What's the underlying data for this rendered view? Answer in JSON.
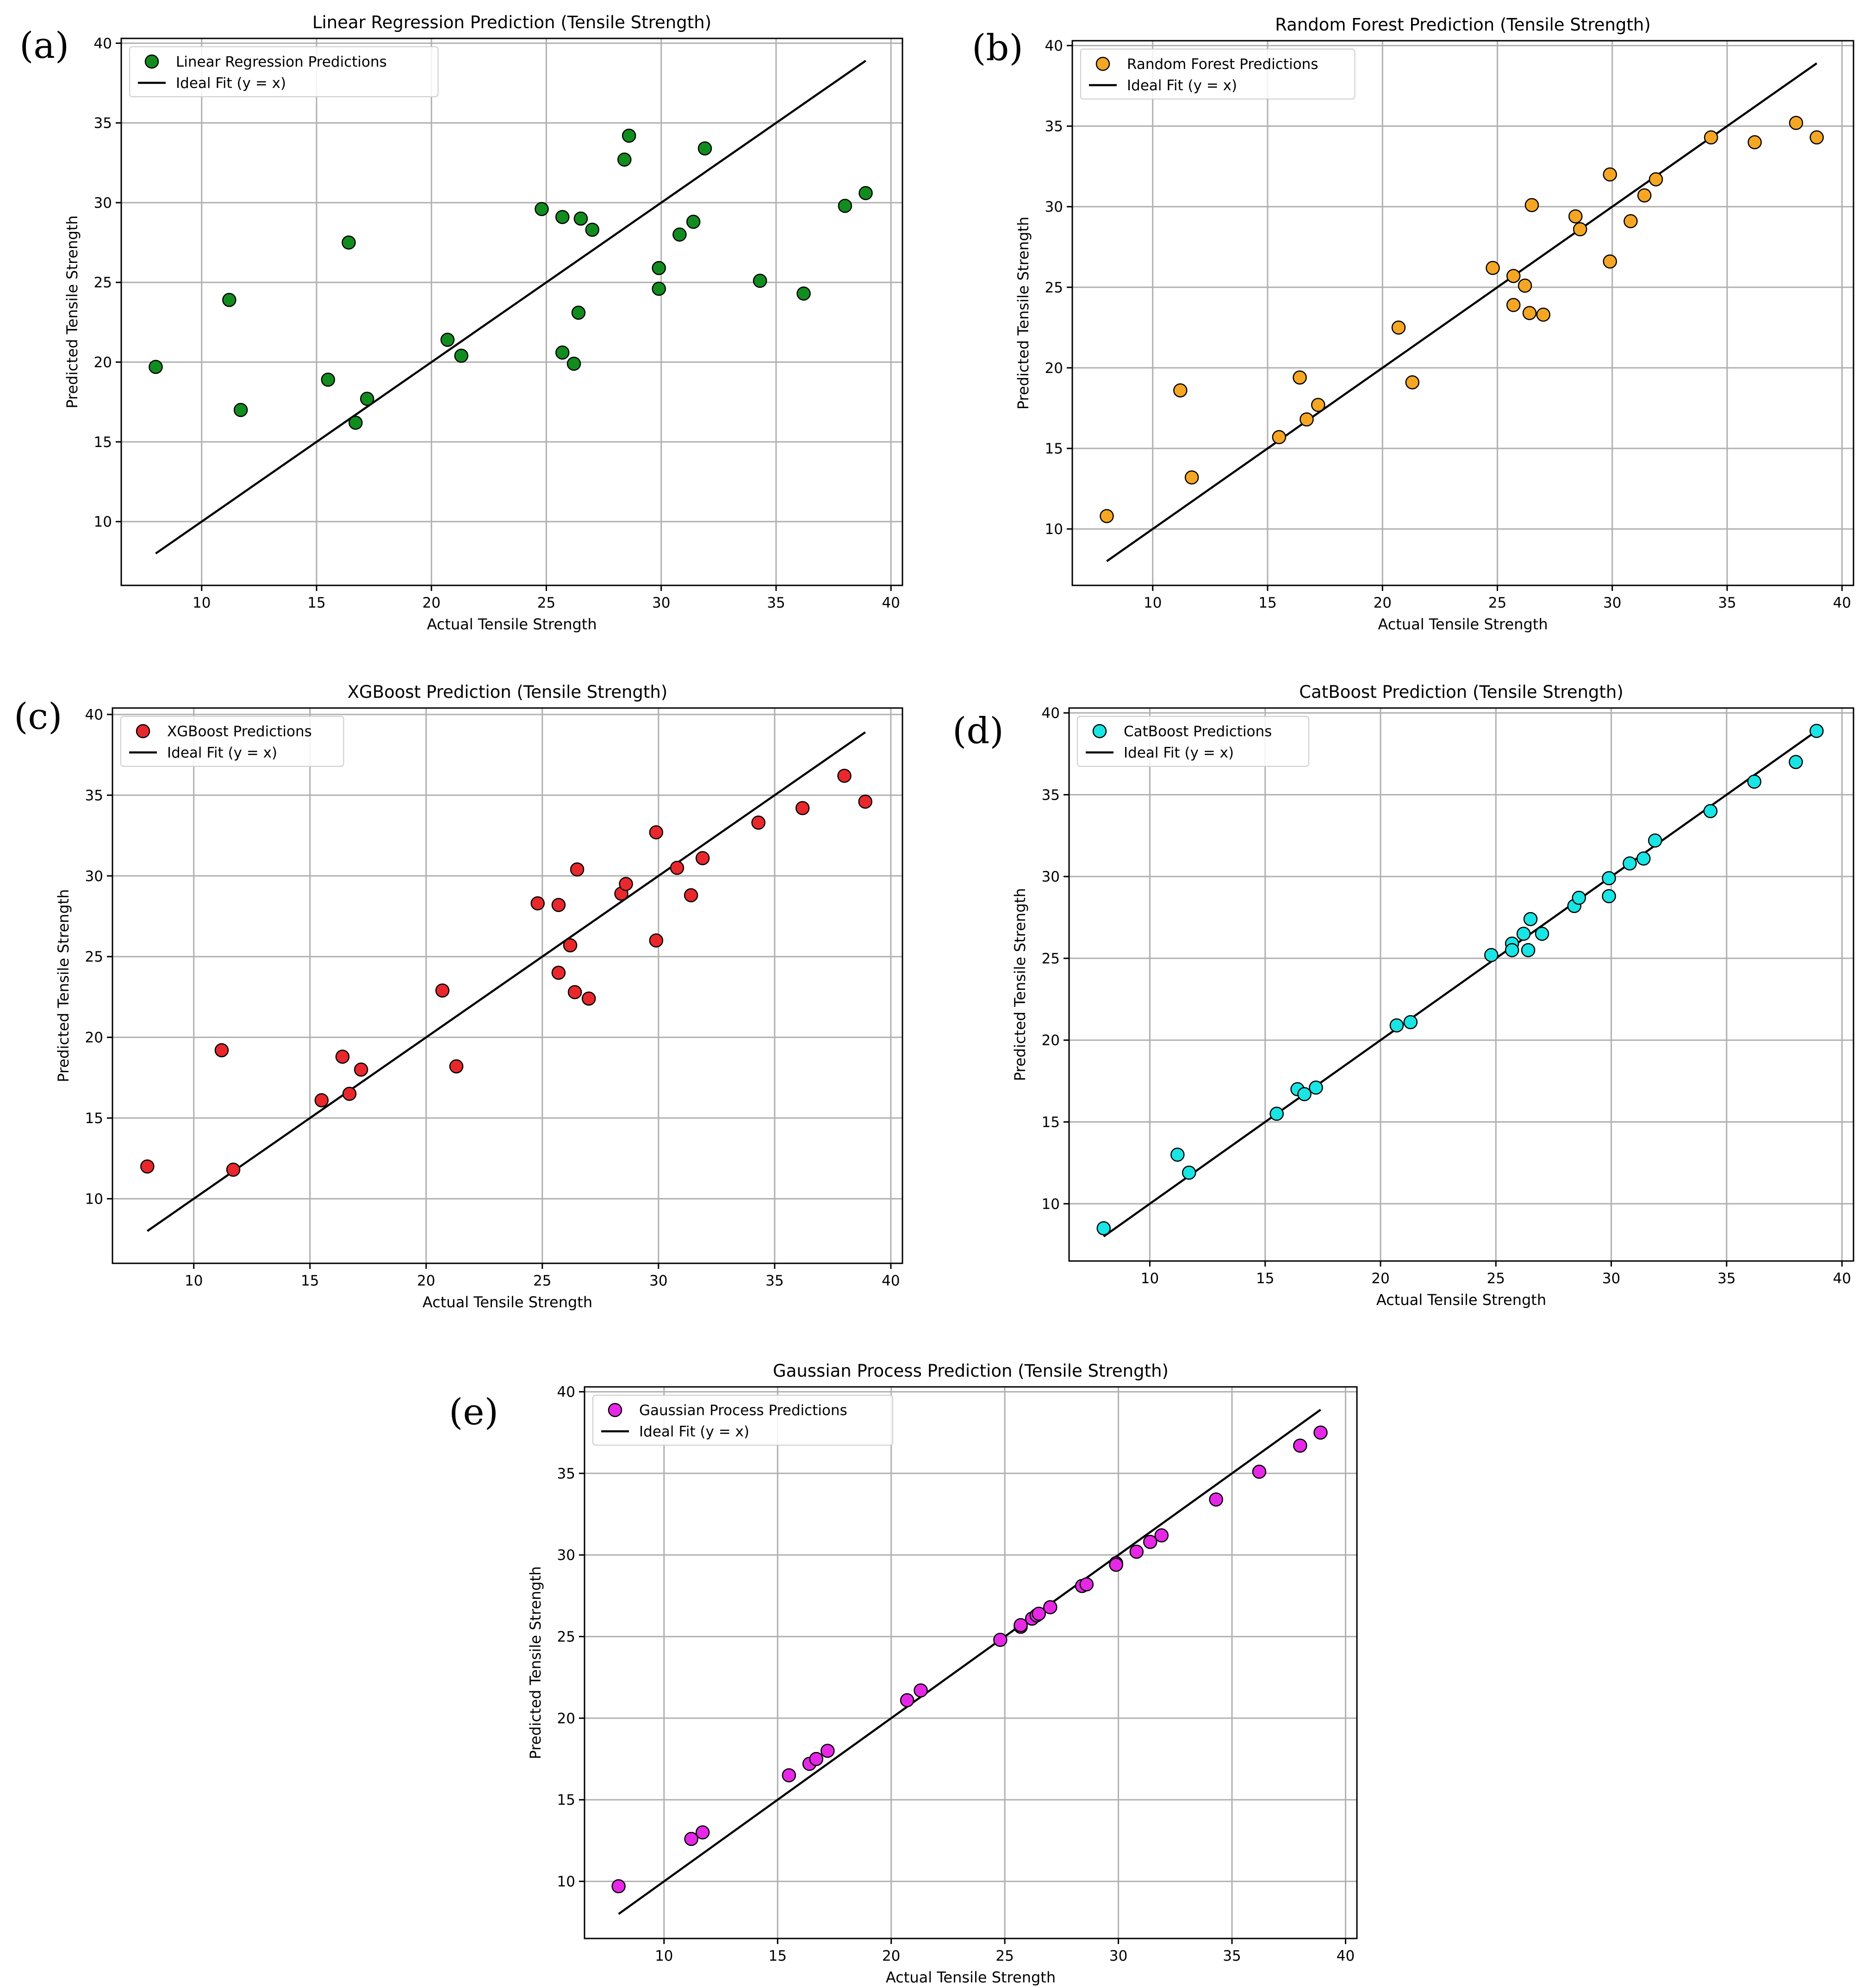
{
  "chart_data": [
    {
      "type": "scatter",
      "panel": "(a)",
      "title": "Linear Regression Prediction (Tensile Strength)",
      "xlabel": "Actual Tensile Strength",
      "ylabel": "Predicted Tensile Strength",
      "xlim": [
        6.5,
        40.5
      ],
      "ylim": [
        6,
        40.3
      ],
      "xticks": [
        10,
        15,
        20,
        25,
        30,
        35,
        40
      ],
      "yticks": [
        10,
        15,
        20,
        25,
        30,
        35,
        40
      ],
      "grid": true,
      "legend_position": "top-left",
      "color": "#118c1e",
      "legend": [
        "Linear Regression Predictions",
        "Ideal Fit (y = x)"
      ],
      "ideal_fit": [
        8,
        38.9
      ],
      "points": [
        [
          8.0,
          19.7
        ],
        [
          11.2,
          23.9
        ],
        [
          11.7,
          17.0
        ],
        [
          15.5,
          18.9
        ],
        [
          16.4,
          27.5
        ],
        [
          16.7,
          16.2
        ],
        [
          17.2,
          17.7
        ],
        [
          20.7,
          21.4
        ],
        [
          21.3,
          20.4
        ],
        [
          24.8,
          29.6
        ],
        [
          25.7,
          20.6
        ],
        [
          25.7,
          29.1
        ],
        [
          26.2,
          19.9
        ],
        [
          26.4,
          23.1
        ],
        [
          26.5,
          29.0
        ],
        [
          27.0,
          28.3
        ],
        [
          28.4,
          32.7
        ],
        [
          28.6,
          34.2
        ],
        [
          29.9,
          25.9
        ],
        [
          29.9,
          24.6
        ],
        [
          30.8,
          28.0
        ],
        [
          31.4,
          28.8
        ],
        [
          31.9,
          33.4
        ],
        [
          34.3,
          25.1
        ],
        [
          36.2,
          24.3
        ],
        [
          38.0,
          29.8
        ],
        [
          38.9,
          30.6
        ]
      ]
    },
    {
      "type": "scatter",
      "panel": "(b)",
      "title": "Random Forest Prediction (Tensile Strength)",
      "xlabel": "Actual Tensile Strength",
      "ylabel": "Predicted Tensile Strength",
      "xlim": [
        6.5,
        40.5
      ],
      "ylim": [
        6.5,
        40.3
      ],
      "xticks": [
        10,
        15,
        20,
        25,
        30,
        35,
        40
      ],
      "yticks": [
        10,
        15,
        20,
        25,
        30,
        35,
        40
      ],
      "grid": true,
      "legend_position": "top-left",
      "color": "#f5a623",
      "legend": [
        "Random Forest Predictions",
        "Ideal Fit (y = x)"
      ],
      "ideal_fit": [
        8,
        38.9
      ],
      "points": [
        [
          8.0,
          10.8
        ],
        [
          11.2,
          18.6
        ],
        [
          11.7,
          13.2
        ],
        [
          15.5,
          15.7
        ],
        [
          16.4,
          19.4
        ],
        [
          16.7,
          16.8
        ],
        [
          17.2,
          17.7
        ],
        [
          20.7,
          22.5
        ],
        [
          21.3,
          19.1
        ],
        [
          24.8,
          26.2
        ],
        [
          25.7,
          25.7
        ],
        [
          25.7,
          23.9
        ],
        [
          26.2,
          25.1
        ],
        [
          26.4,
          23.4
        ],
        [
          26.5,
          30.1
        ],
        [
          27.0,
          23.3
        ],
        [
          28.4,
          29.4
        ],
        [
          28.6,
          28.6
        ],
        [
          29.9,
          32.0
        ],
        [
          29.9,
          26.6
        ],
        [
          30.8,
          29.1
        ],
        [
          31.4,
          30.7
        ],
        [
          31.9,
          31.7
        ],
        [
          34.3,
          34.3
        ],
        [
          36.2,
          34.0
        ],
        [
          38.0,
          35.2
        ],
        [
          38.9,
          34.3
        ]
      ]
    },
    {
      "type": "scatter",
      "panel": "(c)",
      "title": "XGBoost Prediction (Tensile Strength)",
      "xlabel": "Actual Tensile Strength",
      "ylabel": "Predicted Tensile Strength",
      "xlim": [
        6.5,
        40.5
      ],
      "ylim": [
        6,
        40.4
      ],
      "xticks": [
        10,
        15,
        20,
        25,
        30,
        35,
        40
      ],
      "yticks": [
        10,
        15,
        20,
        25,
        30,
        35,
        40
      ],
      "grid": true,
      "legend_position": "top-left",
      "color": "#e8282c",
      "legend": [
        "XGBoost Predictions",
        "Ideal Fit (y = x)"
      ],
      "ideal_fit": [
        8,
        38.9
      ],
      "points": [
        [
          8.0,
          12.0
        ],
        [
          11.2,
          19.2
        ],
        [
          11.7,
          11.8
        ],
        [
          15.5,
          16.1
        ],
        [
          16.4,
          18.8
        ],
        [
          16.7,
          16.5
        ],
        [
          17.2,
          18.0
        ],
        [
          20.7,
          22.9
        ],
        [
          21.3,
          18.2
        ],
        [
          24.8,
          28.3
        ],
        [
          25.7,
          28.2
        ],
        [
          25.7,
          24.0
        ],
        [
          26.2,
          25.7
        ],
        [
          26.4,
          22.8
        ],
        [
          26.5,
          30.4
        ],
        [
          27.0,
          22.4
        ],
        [
          28.4,
          28.9
        ],
        [
          28.6,
          29.5
        ],
        [
          29.9,
          32.7
        ],
        [
          29.9,
          26.0
        ],
        [
          30.8,
          30.5
        ],
        [
          31.4,
          28.8
        ],
        [
          31.9,
          31.1
        ],
        [
          34.3,
          33.3
        ],
        [
          36.2,
          34.2
        ],
        [
          38.0,
          36.2
        ],
        [
          38.9,
          34.6
        ]
      ]
    },
    {
      "type": "scatter",
      "panel": "(d)",
      "title": "CatBoost Prediction (Tensile Strength)",
      "xlabel": "Actual Tensile Strength",
      "ylabel": "Predicted Tensile Strength",
      "xlim": [
        6.5,
        40.5
      ],
      "ylim": [
        6.5,
        40.3
      ],
      "xticks": [
        10,
        15,
        20,
        25,
        30,
        35,
        40
      ],
      "yticks": [
        10,
        15,
        20,
        25,
        30,
        35,
        40
      ],
      "grid": true,
      "legend_position": "top-left",
      "color": "#19e5e5",
      "legend": [
        "CatBoost Predictions",
        "Ideal Fit (y = x)"
      ],
      "ideal_fit": [
        8,
        38.9
      ],
      "points": [
        [
          8.0,
          8.5
        ],
        [
          11.2,
          13.0
        ],
        [
          11.7,
          11.9
        ],
        [
          15.5,
          15.5
        ],
        [
          16.4,
          17.0
        ],
        [
          16.7,
          16.7
        ],
        [
          17.2,
          17.1
        ],
        [
          20.7,
          20.9
        ],
        [
          21.3,
          21.1
        ],
        [
          24.8,
          25.2
        ],
        [
          25.7,
          25.9
        ],
        [
          25.7,
          25.5
        ],
        [
          26.2,
          26.5
        ],
        [
          26.4,
          25.5
        ],
        [
          26.5,
          27.4
        ],
        [
          27.0,
          26.5
        ],
        [
          28.4,
          28.2
        ],
        [
          28.6,
          28.7
        ],
        [
          29.9,
          29.9
        ],
        [
          29.9,
          28.8
        ],
        [
          30.8,
          30.8
        ],
        [
          31.4,
          31.1
        ],
        [
          31.9,
          32.2
        ],
        [
          34.3,
          34.0
        ],
        [
          36.2,
          35.8
        ],
        [
          38.0,
          37.0
        ],
        [
          38.9,
          38.9
        ]
      ]
    },
    {
      "type": "scatter",
      "panel": "(e)",
      "title": "Gaussian Process Prediction (Tensile Strength)",
      "xlabel": "Actual Tensile Strength",
      "ylabel": "Predicted Tensile Strength",
      "xlim": [
        6.5,
        40.5
      ],
      "ylim": [
        6.5,
        40.3
      ],
      "xticks": [
        10,
        15,
        20,
        25,
        30,
        35,
        40
      ],
      "yticks": [
        10,
        15,
        20,
        25,
        30,
        35,
        40
      ],
      "grid": true,
      "legend_position": "top-left",
      "color": "#e628e6",
      "legend": [
        "Gaussian Process Predictions",
        "Ideal Fit (y = x)"
      ],
      "ideal_fit": [
        8,
        38.9
      ],
      "points": [
        [
          8.0,
          9.7
        ],
        [
          11.2,
          12.6
        ],
        [
          11.7,
          13.0
        ],
        [
          15.5,
          16.5
        ],
        [
          16.4,
          17.2
        ],
        [
          16.7,
          17.5
        ],
        [
          17.2,
          18.0
        ],
        [
          20.7,
          21.1
        ],
        [
          21.3,
          21.7
        ],
        [
          24.8,
          24.8
        ],
        [
          25.7,
          25.6
        ],
        [
          25.7,
          25.7
        ],
        [
          26.2,
          26.1
        ],
        [
          26.4,
          26.3
        ],
        [
          26.5,
          26.4
        ],
        [
          27.0,
          26.8
        ],
        [
          28.4,
          28.1
        ],
        [
          28.6,
          28.2
        ],
        [
          29.9,
          29.5
        ],
        [
          29.9,
          29.4
        ],
        [
          30.8,
          30.2
        ],
        [
          31.4,
          30.8
        ],
        [
          31.9,
          31.2
        ],
        [
          34.3,
          33.4
        ],
        [
          36.2,
          35.1
        ],
        [
          38.0,
          36.7
        ],
        [
          38.9,
          37.5
        ]
      ]
    }
  ]
}
